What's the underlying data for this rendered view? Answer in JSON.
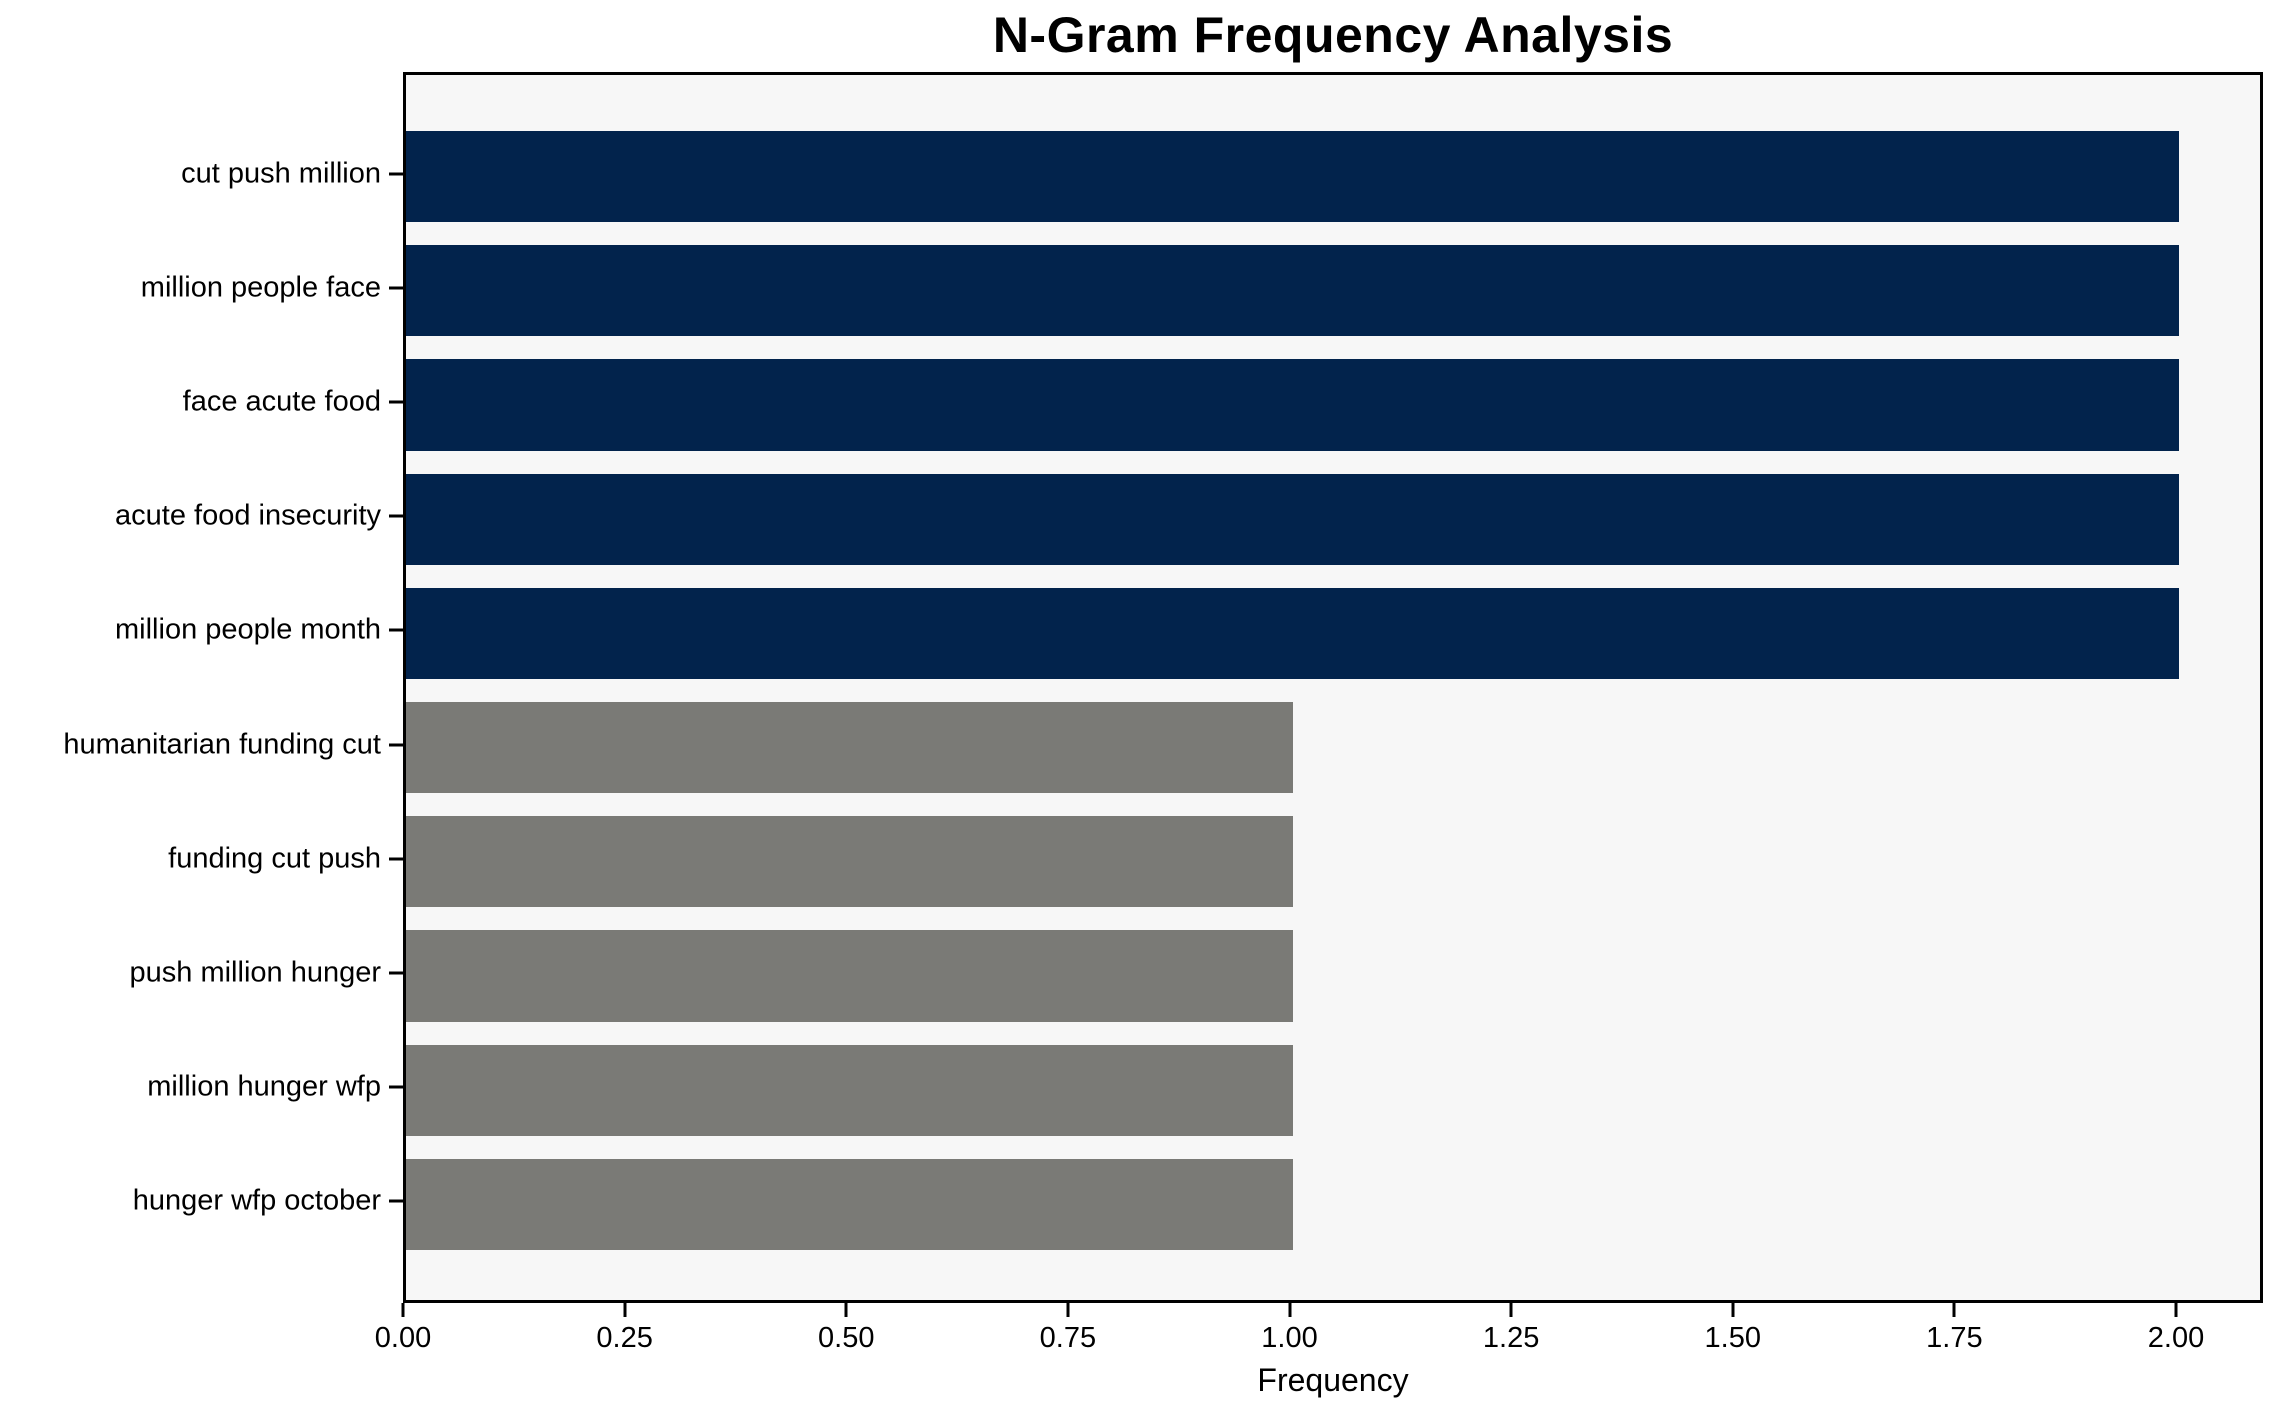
{
  "chart_data": {
    "type": "bar",
    "orientation": "horizontal",
    "title": "N-Gram Frequency Analysis",
    "xlabel": "Frequency",
    "ylabel": "",
    "categories": [
      "cut push million",
      "million people face",
      "face acute food",
      "acute food insecurity",
      "million people month",
      "humanitarian funding cut",
      "funding cut push",
      "push million hunger",
      "million hunger wfp",
      "hunger wfp october"
    ],
    "values": [
      2,
      2,
      2,
      2,
      2,
      1,
      1,
      1,
      1,
      1
    ],
    "bar_colors": [
      "#02234c",
      "#02234c",
      "#02234c",
      "#02234c",
      "#02234c",
      "#7a7a76",
      "#7a7a76",
      "#7a7a76",
      "#7a7a76",
      "#7a7a76"
    ],
    "xticks": [
      0,
      0.25,
      0.5,
      0.75,
      1.0,
      1.25,
      1.5,
      1.75,
      2.0
    ],
    "xtick_labels": [
      "0.00",
      "0.25",
      "0.50",
      "0.75",
      "1.00",
      "1.25",
      "1.50",
      "1.75",
      "2.00"
    ],
    "xlim": [
      0,
      2.1
    ],
    "grid": false,
    "legend": false,
    "colors": {
      "bar_high": "#02234c",
      "bar_low": "#7a7a76",
      "plot_background": "#f7f7f7",
      "figure_background": "#ffffff",
      "axis": "#000000"
    }
  }
}
